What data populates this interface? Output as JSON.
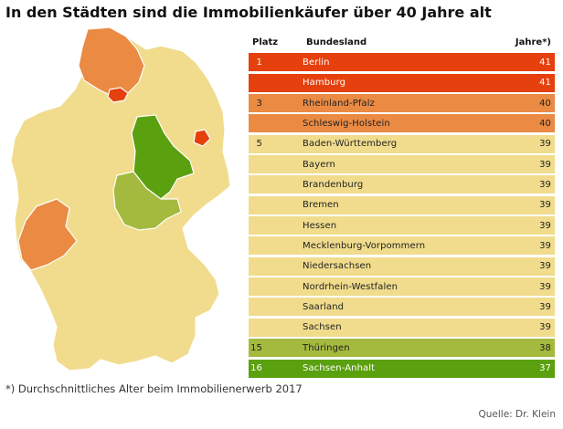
{
  "title": "In den Städten sind die Immobilienkäufer über 40 Jahre alt",
  "table_headers": {
    "rank": "Platz",
    "state": "Bundesland",
    "age": "Jahre*)"
  },
  "footnote": "*) Durchschnittliches Alter beim Immobilienerwerb 2017",
  "source": "Quelle: Dr. Klein",
  "colors": {
    "age41": "#e5400d",
    "age40": "#ea8a43",
    "age39": "#f0dc8c",
    "age38": "#a4ba3e",
    "age37": "#5aa00f",
    "border": "#ffffff"
  },
  "chart_data": {
    "type": "table",
    "title": "In den Städten sind die Immobilienkäufer über 40 Jahre alt",
    "columns": [
      "Platz",
      "Bundesland",
      "Jahre*)"
    ],
    "rows": [
      {
        "rank": "1",
        "state": "Berlin",
        "age": 41
      },
      {
        "rank": "",
        "state": "Hamburg",
        "age": 41
      },
      {
        "rank": "3",
        "state": "Rheinland-Pfalz",
        "age": 40
      },
      {
        "rank": "",
        "state": "Schleswig-Holstein",
        "age": 40
      },
      {
        "rank": "5",
        "state": "Baden-Württemberg",
        "age": 39
      },
      {
        "rank": "",
        "state": "Bayern",
        "age": 39
      },
      {
        "rank": "",
        "state": "Brandenburg",
        "age": 39
      },
      {
        "rank": "",
        "state": "Bremen",
        "age": 39
      },
      {
        "rank": "",
        "state": "Hessen",
        "age": 39
      },
      {
        "rank": "",
        "state": "Mecklenburg-Vorpommern",
        "age": 39
      },
      {
        "rank": "",
        "state": "Niedersachsen",
        "age": 39
      },
      {
        "rank": "",
        "state": "Nordrhein-Westfalen",
        "age": 39
      },
      {
        "rank": "",
        "state": "Saarland",
        "age": 39
      },
      {
        "rank": "",
        "state": "Sachsen",
        "age": 39
      },
      {
        "rank": "15",
        "state": "Thüringen",
        "age": 38
      },
      {
        "rank": "16",
        "state": "Sachsen-Anhalt",
        "age": 37
      }
    ]
  }
}
